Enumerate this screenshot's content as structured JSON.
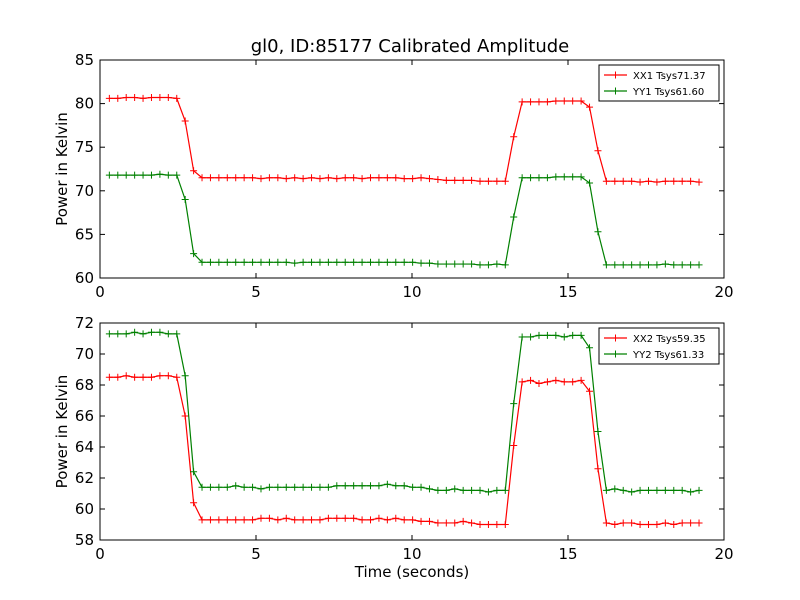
{
  "title": "gl0, ID:85177 Calibrated Amplitude",
  "chart_data": [
    {
      "type": "line",
      "ylabel": "Power in Kelvin",
      "xlabel": "",
      "xlim": [
        0,
        20
      ],
      "ylim": [
        60,
        85
      ],
      "xticks": [
        "0",
        "5",
        "10",
        "15",
        "20"
      ],
      "yticks": [
        "60",
        "65",
        "70",
        "75",
        "80",
        "85"
      ],
      "legend_position": "top-right",
      "series": [
        {
          "name": "XX1 Tsys71.37",
          "color": "#ff0000",
          "x": [
            0.3,
            0.57,
            0.84,
            1.11,
            1.38,
            1.65,
            1.92,
            2.19,
            2.46,
            2.73,
            3.0,
            3.27,
            3.54,
            3.81,
            4.08,
            4.35,
            4.62,
            4.89,
            5.16,
            5.43,
            5.7,
            5.97,
            6.24,
            6.51,
            6.78,
            7.05,
            7.32,
            7.59,
            7.86,
            8.13,
            8.4,
            8.67,
            8.94,
            9.21,
            9.48,
            9.75,
            10.02,
            10.29,
            10.56,
            10.83,
            11.1,
            11.37,
            11.64,
            11.91,
            12.18,
            12.45,
            12.72,
            12.99,
            13.26,
            13.53,
            13.8,
            14.07,
            14.34,
            14.61,
            14.88,
            15.15,
            15.42,
            15.69,
            15.96,
            16.23,
            16.5,
            16.77,
            17.04,
            17.31,
            17.58,
            17.85,
            18.12,
            18.39,
            18.66,
            18.93,
            19.2
          ],
          "y": [
            80.6,
            80.6,
            80.7,
            80.7,
            80.6,
            80.7,
            80.7,
            80.7,
            80.6,
            78.0,
            72.3,
            71.5,
            71.5,
            71.5,
            71.5,
            71.5,
            71.5,
            71.5,
            71.4,
            71.5,
            71.5,
            71.4,
            71.5,
            71.4,
            71.5,
            71.4,
            71.5,
            71.4,
            71.5,
            71.5,
            71.4,
            71.5,
            71.5,
            71.5,
            71.5,
            71.4,
            71.4,
            71.5,
            71.4,
            71.3,
            71.2,
            71.2,
            71.2,
            71.2,
            71.1,
            71.1,
            71.1,
            71.1,
            76.2,
            80.2,
            80.2,
            80.2,
            80.2,
            80.3,
            80.3,
            80.3,
            80.3,
            79.6,
            74.6,
            71.1,
            71.1,
            71.1,
            71.1,
            71.0,
            71.1,
            71.0,
            71.1,
            71.1,
            71.1,
            71.1,
            71.0
          ]
        },
        {
          "name": "YY1 Tsys61.60",
          "color": "#008000",
          "x": [
            0.3,
            0.57,
            0.84,
            1.11,
            1.38,
            1.65,
            1.92,
            2.19,
            2.46,
            2.73,
            3.0,
            3.27,
            3.54,
            3.81,
            4.08,
            4.35,
            4.62,
            4.89,
            5.16,
            5.43,
            5.7,
            5.97,
            6.24,
            6.51,
            6.78,
            7.05,
            7.32,
            7.59,
            7.86,
            8.13,
            8.4,
            8.67,
            8.94,
            9.21,
            9.48,
            9.75,
            10.02,
            10.29,
            10.56,
            10.83,
            11.1,
            11.37,
            11.64,
            11.91,
            12.18,
            12.45,
            12.72,
            12.99,
            13.26,
            13.53,
            13.8,
            14.07,
            14.34,
            14.61,
            14.88,
            15.15,
            15.42,
            15.69,
            15.96,
            16.23,
            16.5,
            16.77,
            17.04,
            17.31,
            17.58,
            17.85,
            18.12,
            18.39,
            18.66,
            18.93,
            19.2
          ],
          "y": [
            71.8,
            71.8,
            71.8,
            71.8,
            71.8,
            71.8,
            71.9,
            71.8,
            71.8,
            69.0,
            62.8,
            61.8,
            61.8,
            61.8,
            61.8,
            61.8,
            61.8,
            61.8,
            61.8,
            61.8,
            61.8,
            61.8,
            61.7,
            61.8,
            61.8,
            61.8,
            61.8,
            61.8,
            61.8,
            61.8,
            61.8,
            61.8,
            61.8,
            61.8,
            61.8,
            61.8,
            61.8,
            61.7,
            61.7,
            61.6,
            61.6,
            61.6,
            61.6,
            61.6,
            61.5,
            61.5,
            61.6,
            61.5,
            67.0,
            71.5,
            71.5,
            71.5,
            71.5,
            71.6,
            71.6,
            71.6,
            71.6,
            70.9,
            65.3,
            61.5,
            61.5,
            61.5,
            61.5,
            61.5,
            61.5,
            61.5,
            61.6,
            61.5,
            61.5,
            61.5,
            61.5
          ]
        }
      ]
    },
    {
      "type": "line",
      "ylabel": "Power in Kelvin",
      "xlabel": "Time (seconds)",
      "xlim": [
        0,
        20
      ],
      "ylim": [
        58,
        72
      ],
      "xticks": [
        "0",
        "5",
        "10",
        "15",
        "20"
      ],
      "yticks": [
        "58",
        "60",
        "62",
        "64",
        "66",
        "68",
        "70",
        "72"
      ],
      "legend_position": "top-right",
      "series": [
        {
          "name": "XX2 Tsys59.35",
          "color": "#ff0000",
          "x": [
            0.3,
            0.57,
            0.84,
            1.11,
            1.38,
            1.65,
            1.92,
            2.19,
            2.46,
            2.73,
            3.0,
            3.27,
            3.54,
            3.81,
            4.08,
            4.35,
            4.62,
            4.89,
            5.16,
            5.43,
            5.7,
            5.97,
            6.24,
            6.51,
            6.78,
            7.05,
            7.32,
            7.59,
            7.86,
            8.13,
            8.4,
            8.67,
            8.94,
            9.21,
            9.48,
            9.75,
            10.02,
            10.29,
            10.56,
            10.83,
            11.1,
            11.37,
            11.64,
            11.91,
            12.18,
            12.45,
            12.72,
            12.99,
            13.26,
            13.53,
            13.8,
            14.07,
            14.34,
            14.61,
            14.88,
            15.15,
            15.42,
            15.69,
            15.96,
            16.23,
            16.5,
            16.77,
            17.04,
            17.31,
            17.58,
            17.85,
            18.12,
            18.39,
            18.66,
            18.93,
            19.2
          ],
          "y": [
            68.5,
            68.5,
            68.6,
            68.5,
            68.5,
            68.5,
            68.6,
            68.6,
            68.5,
            66.0,
            60.4,
            59.3,
            59.3,
            59.3,
            59.3,
            59.3,
            59.3,
            59.3,
            59.4,
            59.4,
            59.3,
            59.4,
            59.3,
            59.3,
            59.3,
            59.3,
            59.4,
            59.4,
            59.4,
            59.4,
            59.3,
            59.3,
            59.4,
            59.3,
            59.4,
            59.3,
            59.3,
            59.2,
            59.2,
            59.1,
            59.1,
            59.1,
            59.2,
            59.1,
            59.0,
            59.0,
            59.0,
            59.0,
            64.1,
            68.2,
            68.3,
            68.1,
            68.2,
            68.3,
            68.2,
            68.2,
            68.3,
            67.6,
            62.6,
            59.1,
            59.0,
            59.1,
            59.1,
            59.0,
            59.0,
            59.0,
            59.1,
            59.0,
            59.1,
            59.1,
            59.1
          ]
        },
        {
          "name": "YY2 Tsys61.33",
          "color": "#008000",
          "x": [
            0.3,
            0.57,
            0.84,
            1.11,
            1.38,
            1.65,
            1.92,
            2.19,
            2.46,
            2.73,
            3.0,
            3.27,
            3.54,
            3.81,
            4.08,
            4.35,
            4.62,
            4.89,
            5.16,
            5.43,
            5.7,
            5.97,
            6.24,
            6.51,
            6.78,
            7.05,
            7.32,
            7.59,
            7.86,
            8.13,
            8.4,
            8.67,
            8.94,
            9.21,
            9.48,
            9.75,
            10.02,
            10.29,
            10.56,
            10.83,
            11.1,
            11.37,
            11.64,
            11.91,
            12.18,
            12.45,
            12.72,
            12.99,
            13.26,
            13.53,
            13.8,
            14.07,
            14.34,
            14.61,
            14.88,
            15.15,
            15.42,
            15.69,
            15.96,
            16.23,
            16.5,
            16.77,
            17.04,
            17.31,
            17.58,
            17.85,
            18.12,
            18.39,
            18.66,
            18.93,
            19.2
          ],
          "y": [
            71.3,
            71.3,
            71.3,
            71.4,
            71.3,
            71.4,
            71.4,
            71.3,
            71.3,
            68.6,
            62.4,
            61.4,
            61.4,
            61.4,
            61.4,
            61.5,
            61.4,
            61.4,
            61.3,
            61.4,
            61.4,
            61.4,
            61.4,
            61.4,
            61.4,
            61.4,
            61.4,
            61.5,
            61.5,
            61.5,
            61.5,
            61.5,
            61.5,
            61.6,
            61.5,
            61.5,
            61.4,
            61.4,
            61.3,
            61.2,
            61.2,
            61.3,
            61.2,
            61.2,
            61.2,
            61.1,
            61.2,
            61.2,
            66.8,
            71.1,
            71.1,
            71.2,
            71.2,
            71.2,
            71.1,
            71.2,
            71.2,
            70.4,
            65.0,
            61.2,
            61.3,
            61.2,
            61.1,
            61.2,
            61.2,
            61.2,
            61.2,
            61.2,
            61.2,
            61.1,
            61.2
          ]
        }
      ]
    }
  ]
}
